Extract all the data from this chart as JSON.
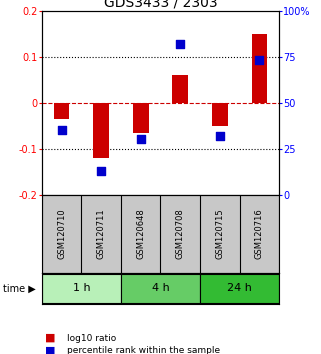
{
  "title": "GDS3433 / 2303",
  "samples": [
    "GSM120710",
    "GSM120711",
    "GSM120648",
    "GSM120708",
    "GSM120715",
    "GSM120716"
  ],
  "log10_ratio": [
    -0.035,
    -0.12,
    -0.065,
    0.06,
    -0.05,
    0.15
  ],
  "percentile_rank": [
    35,
    13,
    30,
    82,
    32,
    73
  ],
  "time_groups": [
    {
      "label": "1 h",
      "start": 0,
      "end": 2,
      "color": "#b8f0b8"
    },
    {
      "label": "4 h",
      "start": 2,
      "end": 4,
      "color": "#66cc66"
    },
    {
      "label": "24 h",
      "start": 4,
      "end": 6,
      "color": "#33bb33"
    }
  ],
  "ylim_left": [
    -0.2,
    0.2
  ],
  "ylim_right": [
    0,
    100
  ],
  "bar_color": "#cc0000",
  "dot_color": "#0000cc",
  "bar_width": 0.4,
  "dot_size": 30,
  "title_fontsize": 10,
  "tick_fontsize": 7,
  "label_fontsize": 8,
  "sample_fontsize": 6,
  "background_color": "#ffffff",
  "plot_bg_color": "#ffffff",
  "zero_line_color": "#cc0000",
  "dotted_line_color": "#000000",
  "sample_bg_color": "#c8c8c8"
}
